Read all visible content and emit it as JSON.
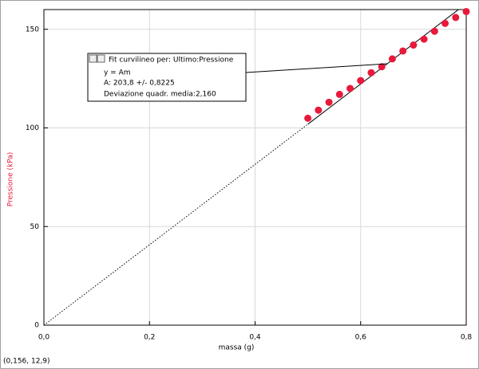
{
  "chart_data": {
    "type": "scatter",
    "x_label": "massa (g)",
    "y_label": "Pressione (kPa)",
    "xlim": [
      0,
      0.8
    ],
    "ylim": [
      0,
      160
    ],
    "xticks": [
      {
        "value": 0,
        "label": "0,0"
      },
      {
        "value": 0.2,
        "label": "0,2"
      },
      {
        "value": 0.4,
        "label": "0,4"
      },
      {
        "value": 0.6,
        "label": "0,6"
      },
      {
        "value": 0.8,
        "label": "0,8"
      }
    ],
    "yticks": [
      0,
      50,
      100,
      150
    ],
    "grid": true,
    "series": [
      {
        "name": "Pressione",
        "color": "#e8193c",
        "x": [
          0.5,
          0.52,
          0.54,
          0.56,
          0.58,
          0.6,
          0.62,
          0.64,
          0.66,
          0.68,
          0.7,
          0.72,
          0.74,
          0.76,
          0.78,
          0.8
        ],
        "values": [
          104.9,
          109,
          113,
          117,
          120,
          124,
          128,
          131,
          135,
          139,
          142,
          145,
          149,
          153,
          156,
          159
        ]
      }
    ],
    "fit_line": {
      "x": [
        0,
        0.5,
        0.8
      ],
      "values": [
        0,
        101.9,
        163.0
      ]
    },
    "annotation": [
      "Fit curvilineo per:  Ultimo:Pressione",
      "y = Am",
      "A: 203,8 +/- 0,8225",
      "Deviazione quadr. media:2,160"
    ],
    "status": "(0,156, 12,9)"
  }
}
